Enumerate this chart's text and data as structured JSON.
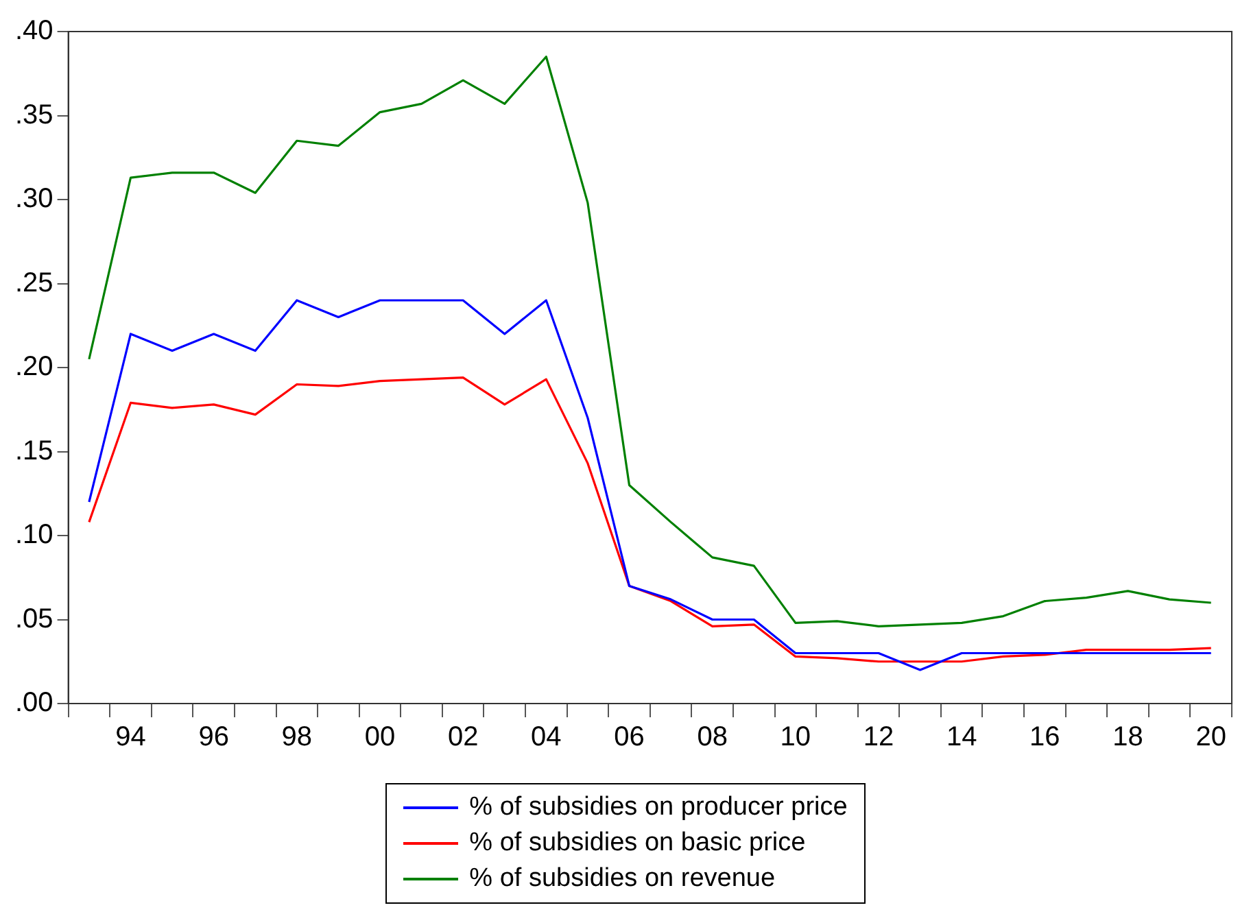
{
  "chart_data": {
    "type": "line",
    "categories": [
      null,
      "94",
      null,
      "96",
      null,
      "98",
      null,
      "00",
      null,
      "02",
      null,
      "04",
      null,
      "06",
      null,
      "08",
      null,
      "10",
      null,
      "12",
      null,
      "14",
      null,
      "16",
      null,
      "18",
      null,
      "20"
    ],
    "series": [
      {
        "name": "% of subsidies on producer price",
        "color": "#0000ff",
        "values": [
          0.12,
          0.22,
          0.21,
          0.22,
          0.21,
          0.24,
          0.23,
          0.24,
          0.24,
          0.24,
          0.22,
          0.24,
          0.17,
          0.07,
          0.062,
          0.05,
          0.05,
          0.03,
          0.03,
          0.03,
          0.02,
          0.03,
          0.03,
          0.03,
          0.03,
          0.03,
          0.03,
          0.03
        ]
      },
      {
        "name": "% of subsidies on basic price",
        "color": "#ff0000",
        "values": [
          0.108,
          0.179,
          0.176,
          0.178,
          0.172,
          0.19,
          0.189,
          0.192,
          0.193,
          0.194,
          0.178,
          0.193,
          0.143,
          0.07,
          0.061,
          0.046,
          0.047,
          0.028,
          0.027,
          0.025,
          0.025,
          0.025,
          0.028,
          0.029,
          0.032,
          0.032,
          0.032,
          0.033
        ]
      },
      {
        "name": "% of subsidies on revenue",
        "color": "#008000",
        "values": [
          0.205,
          0.313,
          0.316,
          0.316,
          0.304,
          0.335,
          0.332,
          0.352,
          0.357,
          0.371,
          0.357,
          0.385,
          0.298,
          0.13,
          0.108,
          0.087,
          0.082,
          0.048,
          0.049,
          0.046,
          0.047,
          0.048,
          0.052,
          0.061,
          0.063,
          0.067,
          0.062,
          0.06
        ]
      }
    ],
    "ylim": [
      0,
      0.4
    ],
    "yticks": [
      {
        "value": 0,
        "label": ".00"
      },
      {
        "value": 0.05,
        "label": ".05"
      },
      {
        "value": 0.1,
        "label": ".10"
      },
      {
        "value": 0.15,
        "label": ".15"
      },
      {
        "value": 0.2,
        "label": ".20"
      },
      {
        "value": 0.25,
        "label": ".25"
      },
      {
        "value": 0.3,
        "label": ".30"
      },
      {
        "value": 0.35,
        "label": ".35"
      },
      {
        "value": 0.4,
        "label": ".40"
      }
    ],
    "grid": false,
    "legend": "bottom",
    "marker": "none",
    "line_style": "solid"
  }
}
